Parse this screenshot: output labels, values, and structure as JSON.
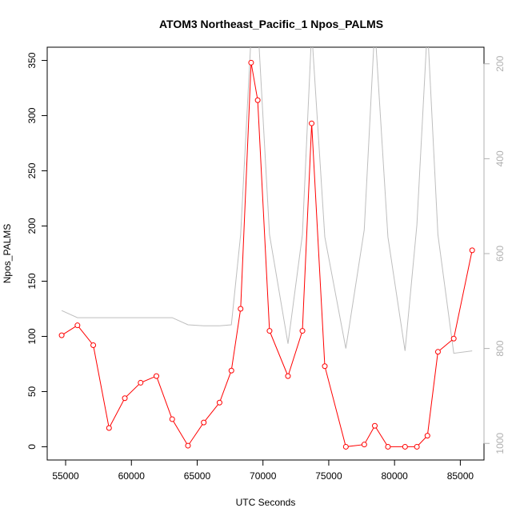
{
  "chart_data": {
    "type": "line",
    "title": "ATOM3 Northeast_Pacific_1 Npos_PALMS",
    "xlabel": "UTC Seconds",
    "ylabel": "Npos_PALMS",
    "xlim": [
      53600,
      86800
    ],
    "ylim": [
      -12,
      362
    ],
    "y2lim": [
      1035,
      165
    ],
    "y2_reversed": true,
    "grid": false,
    "legend": "none",
    "x_ticks": [
      55000,
      60000,
      65000,
      70000,
      75000,
      80000,
      85000
    ],
    "y_ticks": [
      0,
      50,
      100,
      150,
      200,
      250,
      300,
      350
    ],
    "y2_ticks": [
      200,
      400,
      600,
      800,
      1000
    ],
    "colors": {
      "primary": "#ff0000",
      "secondary": "#bebebe",
      "axis": "#000000",
      "axis2": "#b0b0b0"
    },
    "series": [
      {
        "axis": "left",
        "color": "#ff0000",
        "marker": "open-circle",
        "x": [
          54700,
          55900,
          57100,
          58300,
          59500,
          60700,
          61900,
          63100,
          64300,
          65500,
          66700,
          67600,
          68300,
          69100,
          69600,
          70500,
          71900,
          73000,
          73700,
          74700,
          76300,
          77700,
          78500,
          79500,
          80800,
          81700,
          82500,
          83300,
          84500,
          85900
        ],
        "values": [
          101,
          110,
          92,
          17,
          44,
          58,
          64,
          25,
          1,
          22,
          40,
          69,
          125,
          348,
          314,
          105,
          64,
          105,
          293,
          73,
          0,
          2,
          19,
          0,
          0,
          0,
          10,
          86,
          98,
          178
        ]
      },
      {
        "axis": "right",
        "color": "#bebebe",
        "marker": "none",
        "x": [
          54700,
          55900,
          57100,
          58300,
          59500,
          60700,
          61900,
          63100,
          64300,
          65500,
          66700,
          67600,
          68300,
          69100,
          69600,
          70500,
          71900,
          73000,
          73700,
          74700,
          76300,
          77700,
          78500,
          79500,
          80800,
          81700,
          82500,
          83300,
          84500,
          85900
        ],
        "values": [
          720,
          735,
          735,
          735,
          735,
          735,
          735,
          735,
          750,
          752,
          752,
          750,
          560,
          140,
          110,
          560,
          790,
          560,
          130,
          565,
          800,
          550,
          120,
          565,
          805,
          540,
          120,
          560,
          810,
          805
        ]
      }
    ]
  }
}
